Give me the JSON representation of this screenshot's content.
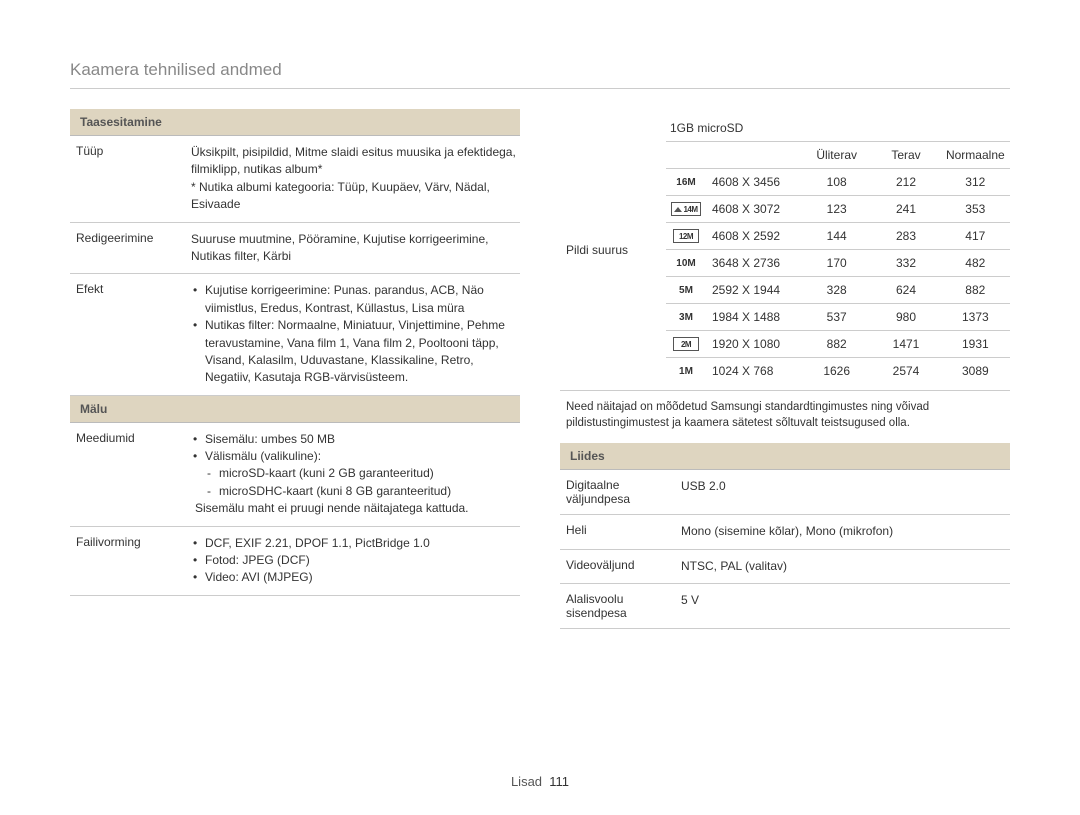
{
  "page": {
    "title": "Kaamera tehnilised andmed",
    "footer_label": "Lisad",
    "footer_page": "111"
  },
  "left": {
    "playback": {
      "header": "Taasesitamine",
      "rows": {
        "type": {
          "label": "Tüüp",
          "value": "Üksikpilt, pisipildid, Mitme slaidi esitus muusika ja efektidega, filmiklipp, nutikas album*\n* Nutika albumi kategooria: Tüüp, Kuupäev, Värv, Nädal, Esivaade"
        },
        "edit": {
          "label": "Redigeerimine",
          "value": "Suuruse muutmine, Pööramine, Kujutise korrigeerimine, Nutikas filter, Kärbi"
        },
        "effect": {
          "label": "Efekt",
          "bullets": [
            "Kujutise korrigeerimine: Punas. parandus, ACB, Näo viimistlus, Eredus, Kontrast, Küllastus, Lisa müra",
            "Nutikas filter: Normaalne, Miniatuur, Vinjettimine, Pehme teravustamine, Vana film 1, Vana film 2, Pooltooni täpp, Visand, Kalasilm, Uduvastane, Klassikaline, Retro, Negatiiv, Kasutaja RGB-värvisüsteem."
          ]
        }
      }
    },
    "memory": {
      "header": "Mälu",
      "rows": {
        "media": {
          "label": "Meediumid",
          "bullets": [
            "Sisemälu: umbes 50 MB",
            "Välismälu (valikuline):"
          ],
          "subitems": [
            "microSD-kaart (kuni 2 GB garanteeritud)",
            "microSDHC-kaart (kuni 8 GB garanteeritud)"
          ],
          "note": "Sisemälu maht ei pruugi nende näitajatega kattuda."
        },
        "format": {
          "label": "Failivorming",
          "bullets": [
            "DCF, EXIF 2.21, DPOF 1.1, PictBridge 1.0",
            "Fotod: JPEG (DCF)",
            "Video: AVI (MJPEG)"
          ]
        }
      }
    }
  },
  "right": {
    "pildi": {
      "label": "Pildi suurus",
      "caption": "1GB microSD",
      "headers": [
        "Üliterav",
        "Terav",
        "Normaalne"
      ],
      "rows": [
        {
          "icon": "16M",
          "icon_style": "text",
          "res": "4608 X 3456",
          "v": [
            "108",
            "212",
            "312"
          ]
        },
        {
          "icon": "14M",
          "icon_style": "house",
          "res": "4608 X 3072",
          "v": [
            "123",
            "241",
            "353"
          ]
        },
        {
          "icon": "12M",
          "icon_style": "box",
          "res": "4608 X 2592",
          "v": [
            "144",
            "283",
            "417"
          ]
        },
        {
          "icon": "10M",
          "icon_style": "text",
          "res": "3648 X 2736",
          "v": [
            "170",
            "332",
            "482"
          ]
        },
        {
          "icon": "5M",
          "icon_style": "text",
          "res": "2592 X 1944",
          "v": [
            "328",
            "624",
            "882"
          ]
        },
        {
          "icon": "3M",
          "icon_style": "text",
          "res": "1984 X 1488",
          "v": [
            "537",
            "980",
            "1373"
          ]
        },
        {
          "icon": "2M",
          "icon_style": "box",
          "res": "1920 X 1080",
          "v": [
            "882",
            "1471",
            "1931"
          ]
        },
        {
          "icon": "1M",
          "icon_style": "text",
          "res": "1024 X 768",
          "v": [
            "1626",
            "2574",
            "3089"
          ]
        }
      ],
      "note": "Need näitajad on mõõdetud Samsungi standardtingimustes ning võivad pildistustingimustest ja kaamera sätetest sõltuvalt teistsugused olla."
    },
    "interface": {
      "header": "Liides",
      "rows": {
        "digital": {
          "label": "Digitaalne väljundpesa",
          "value": "USB 2.0"
        },
        "audio": {
          "label": "Heli",
          "value": "Mono (sisemine kõlar), Mono (mikrofon)"
        },
        "video": {
          "label": "Videoväljund",
          "value": "NTSC, PAL (valitav)"
        },
        "dc": {
          "label": "Alalisvoolu sisendpesa",
          "value": "5 V"
        }
      }
    }
  },
  "colors": {
    "header_bg": "#ded5c0",
    "border": "#cccccc",
    "title": "#888888",
    "text": "#333333"
  }
}
